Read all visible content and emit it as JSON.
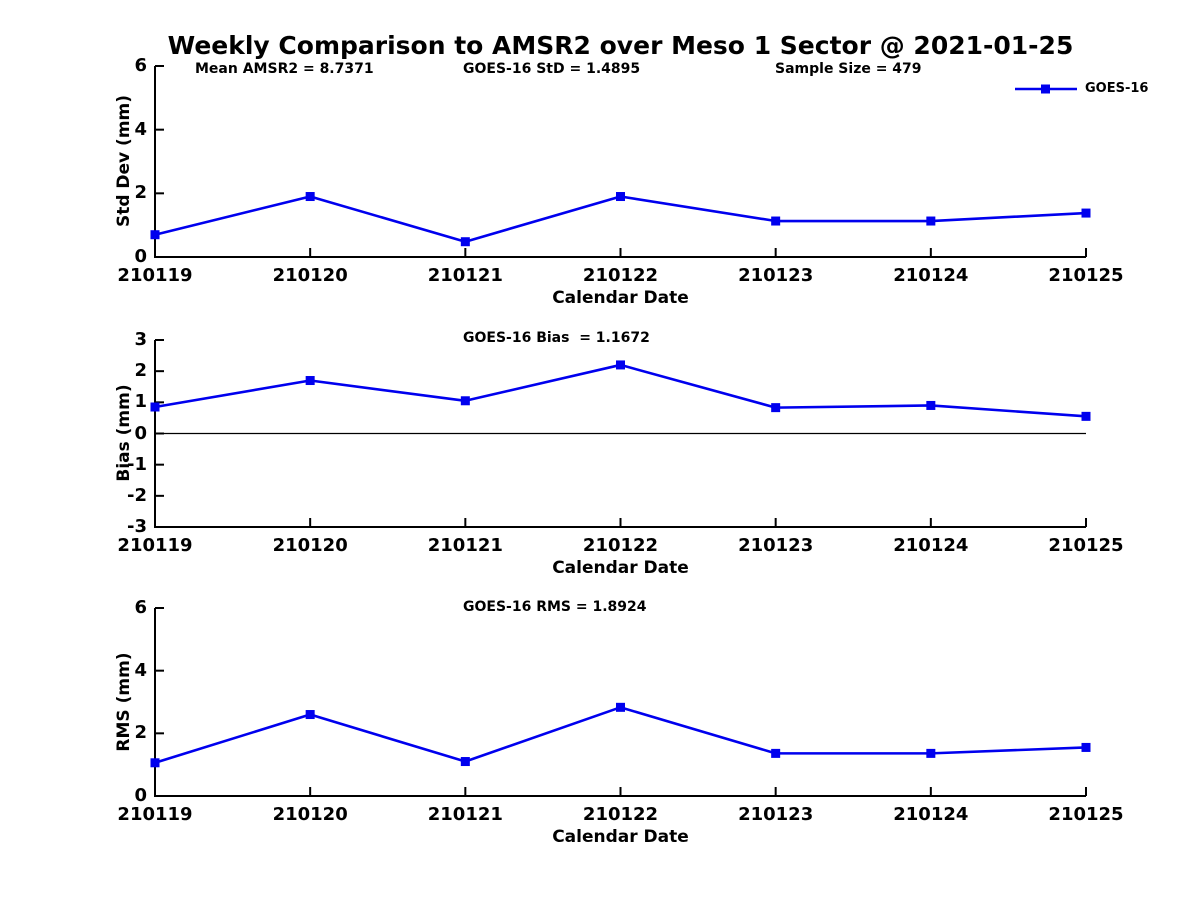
{
  "title": "Weekly Comparison to AMSR2 over Meso 1 Sector @ 2021-01-25",
  "legend": {
    "label": "GOES-16",
    "color": "#0000EE"
  },
  "chart_data": [
    {
      "type": "line",
      "name": "std-dev-vs-date",
      "annotations": [
        "Mean AMSR2 = 8.7371",
        "GOES-16 StD = 1.4895",
        "Sample Size = 479"
      ],
      "ylabel": "Std Dev (mm)",
      "xlabel": "Calendar Date",
      "categories": [
        "210119",
        "210120",
        "210121",
        "210122",
        "210123",
        "210124",
        "210125"
      ],
      "ylim": [
        0,
        6
      ],
      "yticks": [
        0,
        2,
        4,
        6
      ],
      "grid": false,
      "legend_position": "top-right-outside",
      "series": [
        {
          "name": "GOES-16",
          "color": "#0000EE",
          "marker": "square",
          "values": [
            0.7,
            1.9,
            0.48,
            1.9,
            1.13,
            1.13,
            1.38
          ]
        }
      ]
    },
    {
      "type": "line",
      "name": "bias-vs-date",
      "annotations": [
        "GOES-16 Bias  = 1.1672"
      ],
      "ylabel": "Bias (mm)",
      "xlabel": "Calendar Date",
      "categories": [
        "210119",
        "210120",
        "210121",
        "210122",
        "210123",
        "210124",
        "210125"
      ],
      "ylim": [
        -3,
        3
      ],
      "yticks": [
        -3,
        -2,
        -1,
        0,
        1,
        2,
        3
      ],
      "zero_line": true,
      "grid": false,
      "series": [
        {
          "name": "GOES-16",
          "color": "#0000EE",
          "marker": "square",
          "values": [
            0.85,
            1.7,
            1.05,
            2.2,
            0.83,
            0.9,
            0.55
          ]
        }
      ]
    },
    {
      "type": "line",
      "name": "rms-vs-date",
      "annotations": [
        "GOES-16 RMS = 1.8924"
      ],
      "ylabel": "RMS (mm)",
      "xlabel": "Calendar Date",
      "categories": [
        "210119",
        "210120",
        "210121",
        "210122",
        "210123",
        "210124",
        "210125"
      ],
      "ylim": [
        0,
        6
      ],
      "yticks": [
        0,
        2,
        4,
        6
      ],
      "grid": false,
      "series": [
        {
          "name": "GOES-16",
          "color": "#0000EE",
          "marker": "square",
          "values": [
            1.06,
            2.6,
            1.1,
            2.83,
            1.36,
            1.36,
            1.55
          ]
        }
      ]
    }
  ]
}
